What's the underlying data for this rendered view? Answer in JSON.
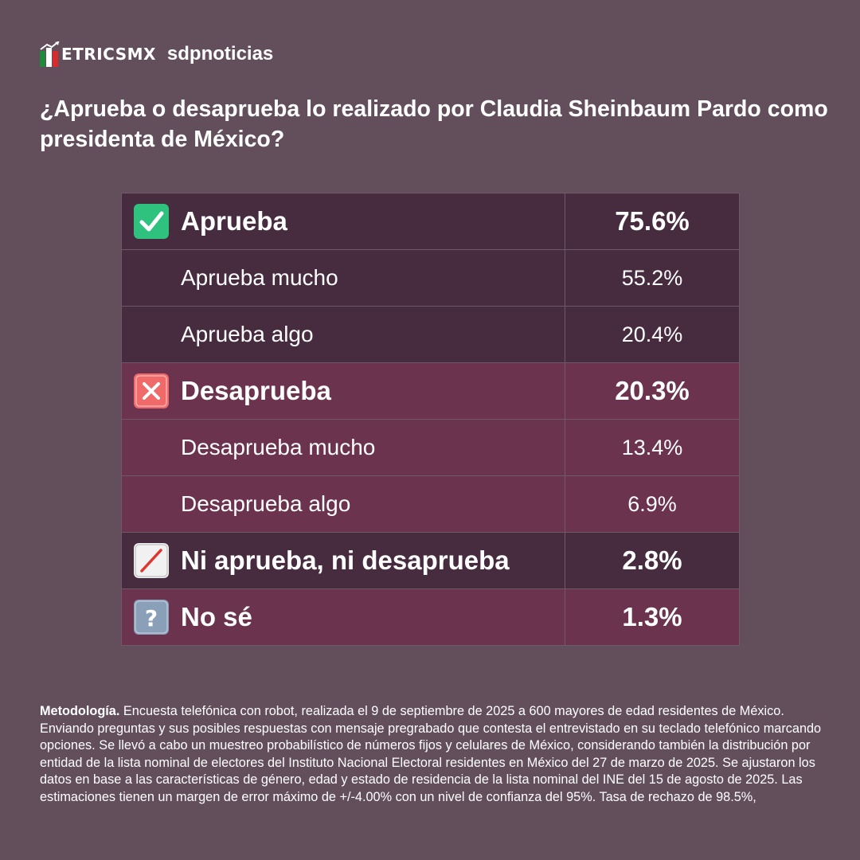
{
  "brand": {
    "logo_text": "ETRICSMX",
    "partner": "sdpnoticias"
  },
  "title": "¿Aprueba o desaprueba lo realizado por Claudia Sheinbaum Pardo como presidenta de México?",
  "chart_data": {
    "type": "table",
    "rows": [
      {
        "label": "Aprueba",
        "value": "75.6%",
        "level": "main",
        "icon": "check-mark-icon",
        "color": "#472b3e"
      },
      {
        "label": "Aprueba mucho",
        "value": "55.2%",
        "level": "sub",
        "color": "#472b3e"
      },
      {
        "label": "Aprueba algo",
        "value": "20.4%",
        "level": "sub",
        "color": "#472b3e"
      },
      {
        "label": "Desaprueba",
        "value": "20.3%",
        "level": "main",
        "icon": "cross-mark-icon",
        "color": "#6c334f"
      },
      {
        "label": "Desaprueba mucho",
        "value": "13.4%",
        "level": "sub",
        "color": "#6c334f"
      },
      {
        "label": "Desaprueba algo",
        "value": "6.9%",
        "level": "sub",
        "color": "#6c334f"
      },
      {
        "label": "Ni aprueba, ni desaprueba",
        "value": "2.8%",
        "level": "main",
        "icon": "slash-icon",
        "color": "#472b3e"
      },
      {
        "label": "No sé",
        "value": "1.3%",
        "level": "main",
        "icon": "question-mark-icon",
        "color": "#6c334f"
      }
    ]
  },
  "methodology": {
    "heading": "Metodología.",
    "text": "Encuesta telefónica con robot, realizada el 9 de septiembre de 2025 a 600 mayores de edad residentes de México. Enviando preguntas y sus posibles respuestas con mensaje pregrabado que contesta el entrevistado en su teclado telefónico marcando opciones. Se llevó a cabo un muestreo probabilístico de números fijos y celulares de México, considerando también la distribución por entidad de la lista nominal de electores del Instituto Nacional Electoral residentes en México del 27 de marzo de 2025. Se ajustaron los datos en base a las características de género, edad y estado de residencia de la lista nominal del INE del 15 de agosto de 2025. Las estimaciones tienen un margen de error máximo de +/-4.00% con un nivel de confianza del 95%. Tasa de rechazo de 98.5%,"
  },
  "colors": {
    "background": "#634e5c",
    "approve_row": "#472b3e",
    "disapprove_row": "#6c334f",
    "check_icon": "#2ec27e",
    "cross_icon": "#f06a6a",
    "question_icon": "#8a9fb8"
  }
}
